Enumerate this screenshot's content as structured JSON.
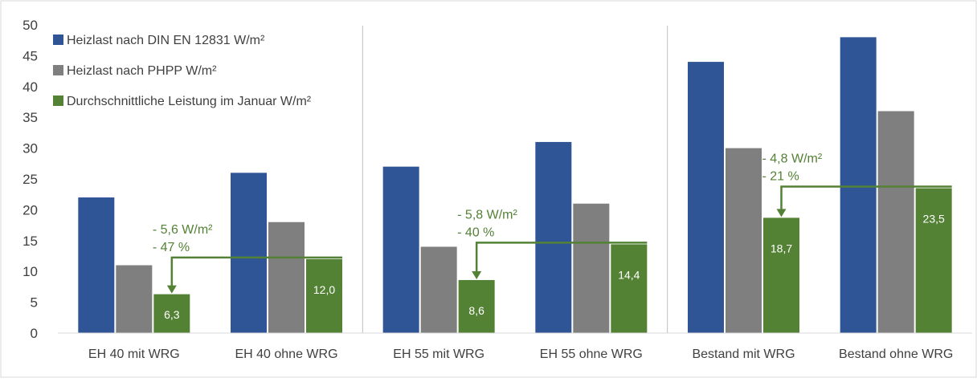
{
  "colors": {
    "din": "#2f5597",
    "phpp": "#7f7f7f",
    "januar": "#548235",
    "annotation": "#538135",
    "axis_text": "#404040",
    "divider": "#bfbfbf"
  },
  "chart_data": {
    "type": "bar",
    "categories": [
      "EH 40 mit WRG",
      "EH 40 ohne WRG",
      "EH 55 mit WRG",
      "EH 55 ohne WRG",
      "Bestand mit WRG",
      "Bestand ohne WRG"
    ],
    "series": [
      {
        "name": "Heizlast nach DIN EN 12831 W/m²",
        "values": [
          22,
          26,
          27,
          31,
          44,
          48
        ]
      },
      {
        "name": "Heizlast nach PHPP W/m²",
        "values": [
          11,
          18,
          14,
          21,
          30,
          36
        ]
      },
      {
        "name": "Durchschnittliche Leistung im Januar W/m²",
        "values": [
          6.3,
          12.0,
          8.6,
          14.4,
          18.7,
          23.5
        ]
      }
    ],
    "data_labels": [
      "6,3",
      "12,0",
      "8,6",
      "14,4",
      "18,7",
      "23,5"
    ],
    "yticks": [
      "0",
      "5",
      "10",
      "15",
      "20",
      "25",
      "30",
      "35",
      "40",
      "45",
      "50"
    ],
    "ylim": [
      0,
      50
    ],
    "grid": false,
    "legend": "top-left",
    "groups": [
      {
        "members": [
          0,
          1
        ],
        "delta": "- 5,6 W/m²",
        "percent": "- 47 %"
      },
      {
        "members": [
          2,
          3
        ],
        "delta": "- 5,8 W/m²",
        "percent": "- 40 %"
      },
      {
        "members": [
          4,
          5
        ],
        "delta": "- 4,8 W/m²",
        "percent": "- 21 %"
      }
    ]
  }
}
